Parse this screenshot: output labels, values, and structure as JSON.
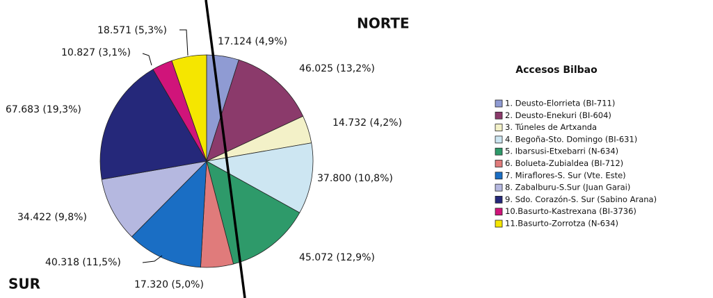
{
  "chart_data": {
    "type": "pie",
    "title": "Accesos Bilbao",
    "annotations": [
      "NORTE",
      "SUR"
    ],
    "categories": [
      "1. Deusto-Elorrieta (BI-711)",
      "2. Deusto-Enekuri (BI-604)",
      "3. Túneles de Artxanda",
      "4. Begoña-Sto. Domingo (BI-631)",
      "5. Ibarsusi-Etxebarri (N-634)",
      "6. Bolueta-Zubialdea (BI-712)",
      "7. Miraflores-S. Sur (Vte. Este)",
      "8. Zabalburu-S.Sur (Juan Garai)",
      "9. Sdo. Corazón-S. Sur (Sabino Arana)",
      "10.Basurto-Kastrexana (BI-3736)",
      "11.Basurto-Zorrotza (N-634)"
    ],
    "values": [
      17124,
      46025,
      14732,
      37800,
      45072,
      17320,
      40318,
      34422,
      67683,
      10827,
      18571
    ],
    "value_labels": [
      "17.124 (4,9%)",
      "46.025 (13,2%)",
      "14.732 (4,2%)",
      "37.800 (10,8%)",
      "45.072 (12,9%)",
      "17.320 (5,0%)",
      "40.318 (11,5%)",
      "34.422 (9,8%)",
      "67.683 (19,3%)",
      "10.827 (3,1%)",
      "18.571 (5,3%)"
    ],
    "colors": [
      "#8f9bd3",
      "#8b3a6b",
      "#f3f1c8",
      "#cde6f2",
      "#2e9a6a",
      "#e07b7b",
      "#1a6ec4",
      "#b5b8e0",
      "#25287a",
      "#d0147a",
      "#f5e600"
    ],
    "legend": "right"
  }
}
